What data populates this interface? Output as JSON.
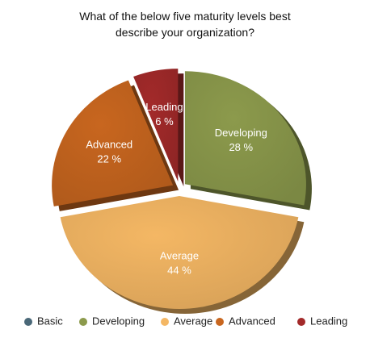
{
  "chart_data": {
    "type": "pie",
    "title": "What of the below five maturity levels best describe your organization?",
    "categories": [
      "Basic",
      "Developing",
      "Average",
      "Advanced",
      "Leading"
    ],
    "values": [
      0,
      28,
      44,
      22,
      6
    ],
    "value_labels": [
      null,
      "28 %",
      "44 %",
      "22 %",
      "6 %"
    ],
    "colors": [
      "#4a6878",
      "#8c9a4c",
      "#f4b764",
      "#c8661f",
      "#a32a2a"
    ],
    "legend": "bottom"
  }
}
